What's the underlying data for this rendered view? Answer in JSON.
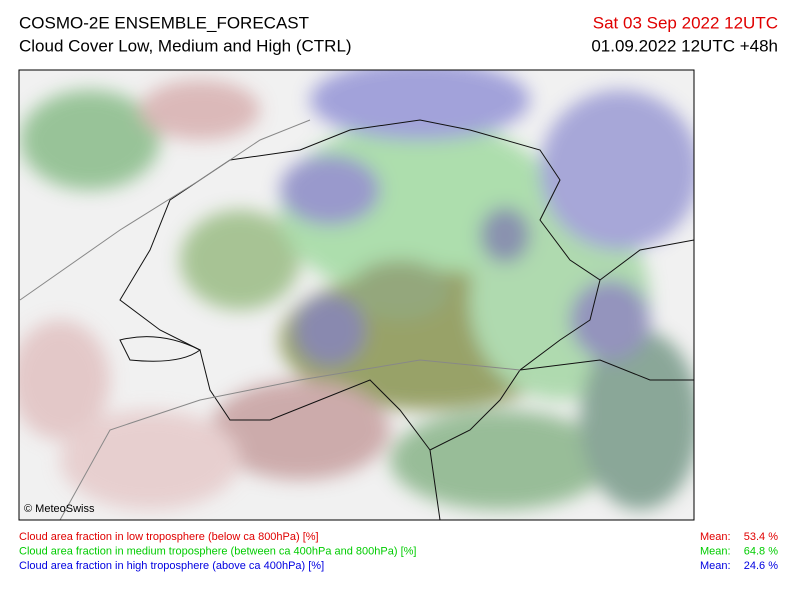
{
  "header": {
    "title": "COSMO-2E ENSEMBLE_FORECAST",
    "subtitle": "Cloud Cover Low, Medium and High (CTRL)",
    "valid_time": "Sat 03 Sep 2022 12UTC",
    "run": "01.09.2022 12UTC +48h",
    "valid_time_color": "#e00000"
  },
  "map": {
    "copyright": "© MeteoSwiss"
  },
  "legend": [
    {
      "label": "Cloud area fraction in low troposphere (below ca 800hPa) [%]",
      "mean_label": "Mean:",
      "mean": "53.4 %",
      "color": "#e00000"
    },
    {
      "label": "Cloud area fraction in medium troposphere (between ca 400hPa and 800hPa) [%]",
      "mean_label": "Mean:",
      "mean": "64.8 %",
      "color": "#00cc00"
    },
    {
      "label": "Cloud area fraction in high troposphere (above ca 400hPa) [%]",
      "mean_label": "Mean:",
      "mean": "24.6 %",
      "color": "#0000e0"
    }
  ]
}
